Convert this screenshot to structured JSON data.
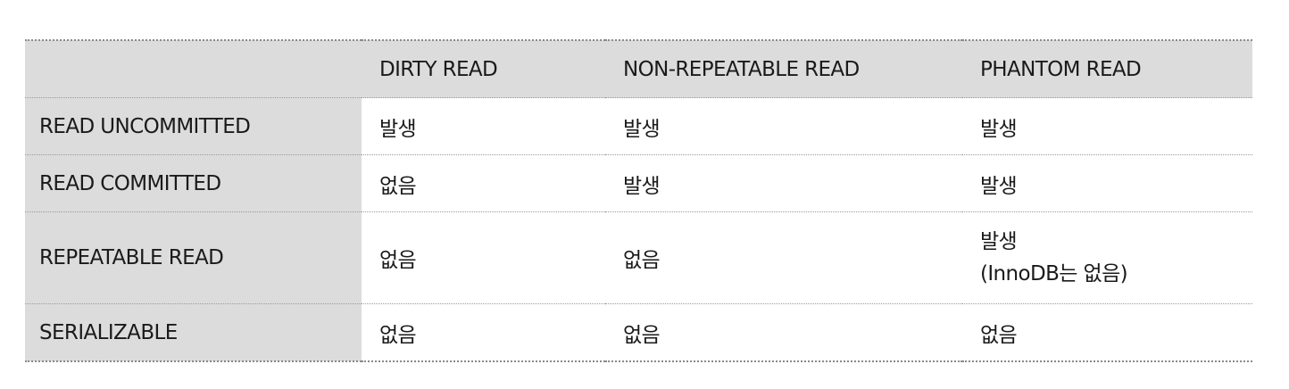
{
  "table": {
    "columns": [
      "",
      "DIRTY READ",
      "NON-REPEATABLE READ",
      "PHANTOM READ"
    ],
    "rows": [
      {
        "level": "READ UNCOMMITTED",
        "dirty_read": "발생",
        "non_repeatable_read": "발생",
        "phantom_read": "발생",
        "phantom_read_note": ""
      },
      {
        "level": "READ COMMITTED",
        "dirty_read": "없음",
        "non_repeatable_read": "발생",
        "phantom_read": "발생",
        "phantom_read_note": ""
      },
      {
        "level": "REPEATABLE READ",
        "dirty_read": "없음",
        "non_repeatable_read": "없음",
        "phantom_read": "발생",
        "phantom_read_note": "(InnoDB는 없음)"
      },
      {
        "level": "SERIALIZABLE",
        "dirty_read": "없음",
        "non_repeatable_read": "없음",
        "phantom_read": "없음",
        "phantom_read_note": ""
      }
    ]
  },
  "colors": {
    "header_bg": "#dcdcdc",
    "text": "#1a1a1a",
    "rule": "#9a9a9a"
  }
}
